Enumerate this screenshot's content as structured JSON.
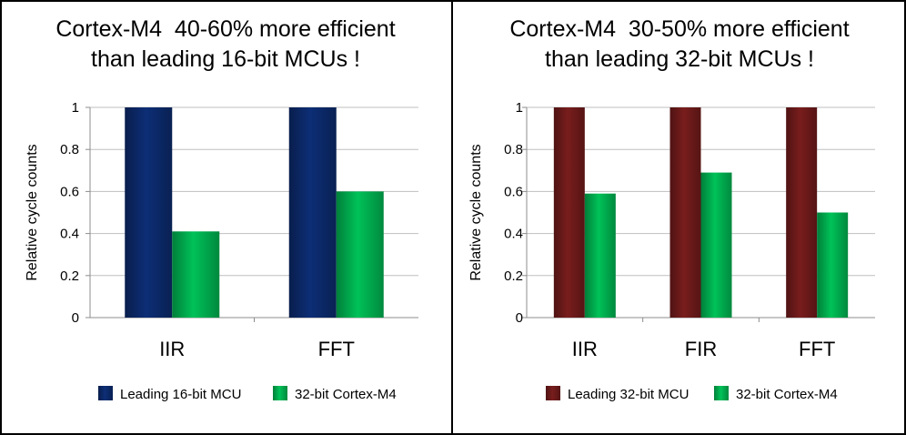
{
  "colors": {
    "navy": "#0c2a6b",
    "green": "#00b050",
    "maroon": "#6e1a1a"
  },
  "chart_data": [
    {
      "type": "bar",
      "title": [
        "Cortex-M4  40-60% more efficient",
        "than leading 16-bit MCUs !"
      ],
      "ylabel": "Relative cycle counts",
      "ylim": [
        0,
        1
      ],
      "yticks": [
        "0",
        "0.2",
        "0.4",
        "0.6",
        "0.8",
        "1"
      ],
      "categories": [
        "IIR",
        "FFT"
      ],
      "series": [
        {
          "name": "Leading 16-bit MCU",
          "values": [
            1,
            1
          ],
          "color": "#0c2a6b"
        },
        {
          "name": "32-bit Cortex-M4",
          "values": [
            0.41,
            0.6
          ],
          "color": "#00b050"
        }
      ],
      "grid": true,
      "legend": "bottom"
    },
    {
      "type": "bar",
      "title": [
        "Cortex-M4  30-50% more efficient",
        "than leading 32-bit MCUs !"
      ],
      "ylabel": "Relative cycle counts",
      "ylim": [
        0,
        1
      ],
      "yticks": [
        "0",
        "0.2",
        "0.4",
        "0.6",
        "0.8",
        "1"
      ],
      "categories": [
        "IIR",
        "FIR",
        "FFT"
      ],
      "series": [
        {
          "name": "Leading 32-bit MCU",
          "values": [
            1,
            1,
            1
          ],
          "color": "#6e1a1a"
        },
        {
          "name": "32-bit Cortex-M4",
          "values": [
            0.59,
            0.69,
            0.5
          ],
          "color": "#00b050"
        }
      ],
      "grid": true,
      "legend": "bottom"
    }
  ]
}
